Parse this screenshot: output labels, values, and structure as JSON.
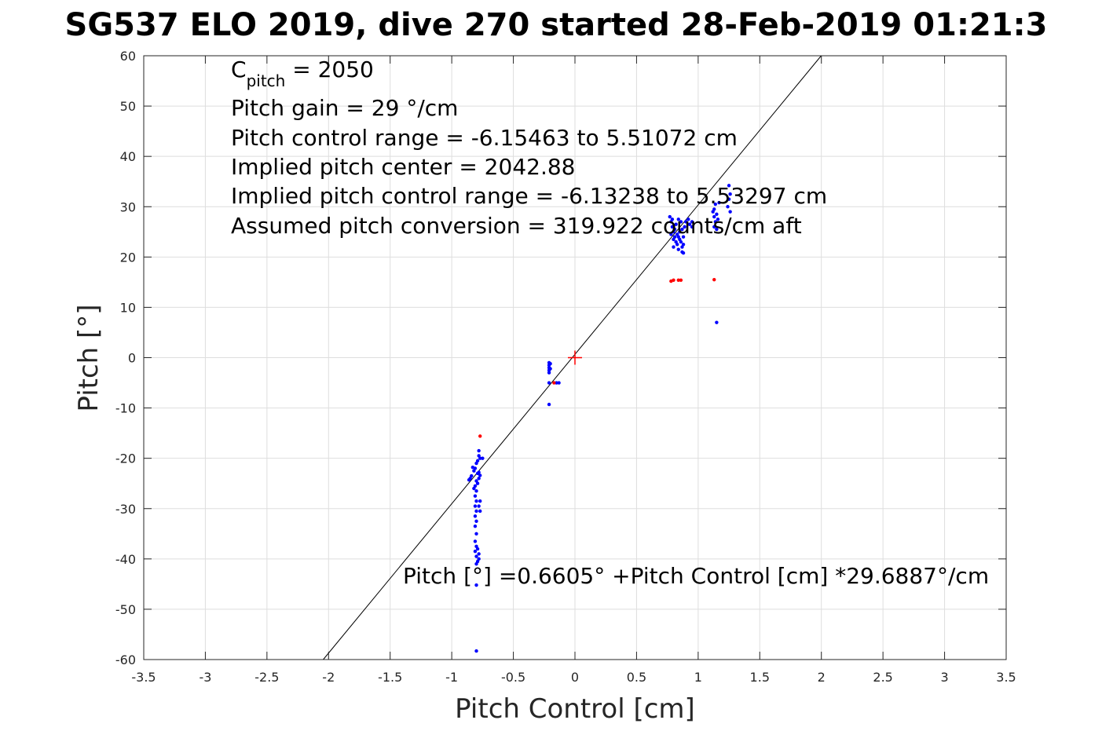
{
  "title": "SG537 ELO 2019, dive 270 started 28-Feb-2019 01:21:3",
  "chart_data": {
    "type": "scatter",
    "xlabel": "Pitch Control [cm]",
    "ylabel": "Pitch [°]",
    "xlim": [
      -3.5,
      3.5
    ],
    "ylim": [
      -60,
      60
    ],
    "x_ticks": [
      "-3.5",
      "-3",
      "-2.5",
      "-2",
      "-1.5",
      "-1",
      "-0.5",
      "0",
      "0.5",
      "1",
      "1.5",
      "2",
      "2.5",
      "3",
      "3.5"
    ],
    "y_ticks": [
      "60",
      "50",
      "40",
      "30",
      "20",
      "10",
      "0",
      "-10",
      "-20",
      "-30",
      "-40",
      "-50",
      "-60"
    ],
    "grid": true,
    "annotations": {
      "c_pitch": {
        "base": "C",
        "subscript": "pitch",
        "rest": " = 2050"
      },
      "lines": [
        "Pitch gain = 29 °/cm",
        "Pitch control range = -6.15463 to 5.51072 cm",
        "Implied pitch center = 2042.88",
        "Implied pitch control range = -6.13238 to 5.53297 cm",
        "Assumed pitch conversion = 319.922 counts/cm aft"
      ],
      "fit_equation": "Pitch [°] =0.6605° +Pitch Control [cm] *29.6887°/cm"
    },
    "fit_line": {
      "intercept": 0.6605,
      "slope": 29.6887,
      "color": "#000000"
    },
    "center_marker": {
      "x": 0,
      "y": 0,
      "color": "#ff0000"
    },
    "series": [
      {
        "color": "#0000ff",
        "points": [
          [
            -0.82,
            -22.5
          ],
          [
            -0.84,
            -23.5
          ],
          [
            -0.85,
            -24.0
          ],
          [
            -0.83,
            -21.8
          ],
          [
            -0.81,
            -22.0
          ],
          [
            -0.79,
            -23.0
          ],
          [
            -0.78,
            -22.8
          ],
          [
            -0.77,
            -23.4
          ],
          [
            -0.8,
            -21.0
          ],
          [
            -0.79,
            -20.5
          ],
          [
            -0.78,
            -19.5
          ],
          [
            -0.77,
            -20.0
          ],
          [
            -0.78,
            -18.5
          ],
          [
            -0.8,
            -24.5
          ],
          [
            -0.81,
            -25.5
          ],
          [
            -0.8,
            -26.5
          ],
          [
            -0.81,
            -27.5
          ],
          [
            -0.8,
            -28.5
          ],
          [
            -0.81,
            -29.5
          ],
          [
            -0.8,
            -30.5
          ],
          [
            -0.81,
            -31.5
          ],
          [
            -0.8,
            -32.5
          ],
          [
            -0.81,
            -33.5
          ],
          [
            -0.8,
            -35.0
          ],
          [
            -0.81,
            -36.5
          ],
          [
            -0.8,
            -37.5
          ],
          [
            -0.81,
            -38.5
          ],
          [
            -0.8,
            -39.5
          ],
          [
            -0.79,
            -40.5
          ],
          [
            -0.8,
            -41.0
          ],
          [
            -0.79,
            -38.0
          ],
          [
            -0.78,
            -39.0
          ],
          [
            -0.78,
            -40.0
          ],
          [
            -0.77,
            -28.5
          ],
          [
            -0.78,
            -29.5
          ],
          [
            -0.77,
            -30.5
          ],
          [
            -0.8,
            -45.2
          ],
          [
            -0.8,
            -58.3
          ],
          [
            -0.75,
            -20.0
          ],
          [
            -0.86,
            -24.3
          ],
          [
            -0.79,
            -25.0
          ],
          [
            -0.78,
            -24.0
          ],
          [
            -0.82,
            -26.0
          ],
          [
            -0.21,
            -1.0
          ],
          [
            -0.21,
            -1.5
          ],
          [
            -0.21,
            -2.0
          ],
          [
            -0.21,
            -2.5
          ],
          [
            -0.21,
            -3.0
          ],
          [
            -0.2,
            -1.2
          ],
          [
            -0.2,
            -2.2
          ],
          [
            -0.21,
            -5.0
          ],
          [
            -0.15,
            -5.0
          ],
          [
            -0.13,
            -5.0
          ],
          [
            -0.21,
            -9.3
          ],
          [
            0.77,
            28.0
          ],
          [
            0.78,
            27.0
          ],
          [
            0.79,
            26.0
          ],
          [
            0.8,
            25.0
          ],
          [
            0.81,
            24.0
          ],
          [
            0.82,
            23.0
          ],
          [
            0.78,
            24.5
          ],
          [
            0.8,
            23.5
          ],
          [
            0.83,
            22.5
          ],
          [
            0.84,
            24.0
          ],
          [
            0.85,
            25.0
          ],
          [
            0.86,
            23.0
          ],
          [
            0.87,
            22.0
          ],
          [
            0.87,
            21.0
          ],
          [
            0.88,
            22.5
          ],
          [
            0.88,
            24.0
          ],
          [
            0.89,
            26.0
          ],
          [
            0.86,
            27.0
          ],
          [
            0.84,
            27.5
          ],
          [
            0.82,
            26.5
          ],
          [
            0.79,
            27.5
          ],
          [
            0.81,
            25.5
          ],
          [
            0.83,
            24.5
          ],
          [
            0.85,
            23.5
          ],
          [
            0.87,
            25.5
          ],
          [
            0.9,
            27.0
          ],
          [
            0.92,
            27.5
          ],
          [
            0.93,
            26.5
          ],
          [
            0.95,
            26.0
          ],
          [
            0.95,
            27.0
          ],
          [
            0.8,
            22.0
          ],
          [
            0.84,
            21.5
          ],
          [
            0.88,
            20.8
          ],
          [
            1.12,
            29.0
          ],
          [
            1.13,
            28.0
          ],
          [
            1.14,
            27.0
          ],
          [
            1.13,
            26.0
          ],
          [
            1.15,
            25.5
          ],
          [
            1.16,
            27.5
          ],
          [
            1.14,
            30.5
          ],
          [
            1.17,
            30.8
          ],
          [
            1.13,
            29.5
          ],
          [
            1.15,
            28.5
          ],
          [
            1.24,
            30.0
          ],
          [
            1.25,
            31.5
          ],
          [
            1.26,
            32.5
          ],
          [
            1.25,
            34.2
          ],
          [
            1.26,
            29.0
          ],
          [
            1.15,
            7.0
          ]
        ]
      },
      {
        "color": "#ff0000",
        "points": [
          [
            -0.77,
            -15.6
          ],
          [
            -0.17,
            -5.0
          ],
          [
            0.78,
            15.2
          ],
          [
            0.8,
            15.4
          ],
          [
            0.84,
            15.4
          ],
          [
            0.86,
            15.4
          ],
          [
            1.13,
            15.5
          ]
        ]
      }
    ]
  }
}
